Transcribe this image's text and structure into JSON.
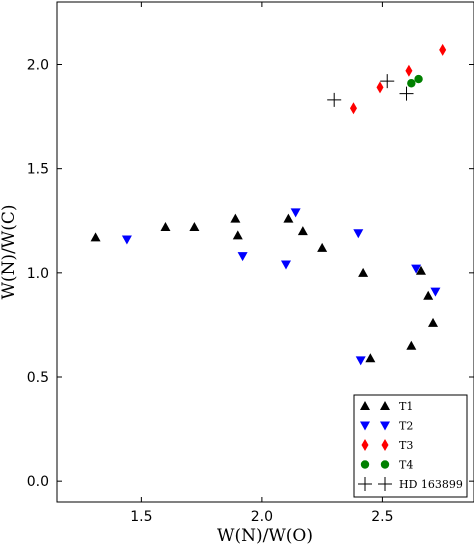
{
  "chart_data": {
    "type": "scatter",
    "xlabel": "W(N)/W(O)",
    "ylabel": "W(N)/W(C)",
    "xlim": [
      1.15,
      2.88
    ],
    "ylim": [
      -0.1,
      2.3
    ],
    "xticks": [
      1.5,
      2.0,
      2.5
    ],
    "xtick_labels": [
      "1.5",
      "2.0",
      "2.5"
    ],
    "yticks": [
      0.0,
      0.5,
      1.0,
      1.5,
      2.0
    ],
    "ytick_labels": [
      "0.0",
      "0.5",
      "1.0",
      "1.5",
      "2.0"
    ],
    "grid": false,
    "legend_position": "bottom-right",
    "series": [
      {
        "name": "T1",
        "marker": "triangle-up",
        "color": "#000000",
        "points": [
          {
            "x": 1.31,
            "y": 1.17
          },
          {
            "x": 1.6,
            "y": 1.22
          },
          {
            "x": 1.72,
            "y": 1.22
          },
          {
            "x": 1.89,
            "y": 1.26
          },
          {
            "x": 1.9,
            "y": 1.18
          },
          {
            "x": 2.11,
            "y": 1.26
          },
          {
            "x": 2.17,
            "y": 1.2
          },
          {
            "x": 2.25,
            "y": 1.12
          },
          {
            "x": 2.42,
            "y": 1.0
          },
          {
            "x": 2.45,
            "y": 0.59
          },
          {
            "x": 2.62,
            "y": 0.65
          },
          {
            "x": 2.66,
            "y": 1.01
          },
          {
            "x": 2.69,
            "y": 0.89
          },
          {
            "x": 2.71,
            "y": 0.76
          }
        ]
      },
      {
        "name": "T2",
        "marker": "triangle-down",
        "color": "#0000ff",
        "points": [
          {
            "x": 1.44,
            "y": 1.16
          },
          {
            "x": 1.92,
            "y": 1.08
          },
          {
            "x": 2.1,
            "y": 1.04
          },
          {
            "x": 2.14,
            "y": 1.29
          },
          {
            "x": 2.4,
            "y": 1.19
          },
          {
            "x": 2.41,
            "y": 0.58
          },
          {
            "x": 2.64,
            "y": 1.02
          },
          {
            "x": 2.72,
            "y": 0.91
          }
        ]
      },
      {
        "name": "T3",
        "marker": "diamond",
        "color": "#ff0000",
        "points": [
          {
            "x": 2.38,
            "y": 1.79
          },
          {
            "x": 2.49,
            "y": 1.89
          },
          {
            "x": 2.61,
            "y": 1.97
          },
          {
            "x": 2.75,
            "y": 2.07
          }
        ]
      },
      {
        "name": "T4",
        "marker": "circle",
        "color": "#008000",
        "points": [
          {
            "x": 2.62,
            "y": 1.91
          },
          {
            "x": 2.65,
            "y": 1.93
          }
        ]
      },
      {
        "name": "HD 163899",
        "marker": "plus",
        "color": "#000000",
        "points": [
          {
            "x": 2.3,
            "y": 1.83
          },
          {
            "x": 2.52,
            "y": 1.92
          },
          {
            "x": 2.6,
            "y": 1.86
          }
        ]
      }
    ]
  }
}
